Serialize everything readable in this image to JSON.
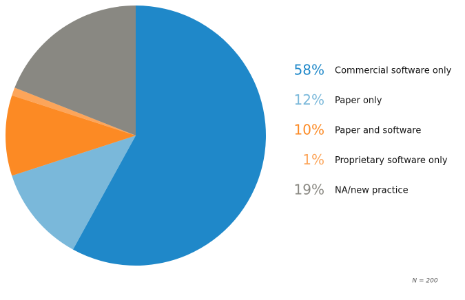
{
  "chart_data": {
    "type": "pie",
    "categories": [
      "Commercial software only",
      "Paper only",
      "Paper and software",
      "Proprietary software only",
      "NA/new practice"
    ],
    "values": [
      58,
      12,
      10,
      1,
      19
    ],
    "value_labels": [
      "58%",
      "12%",
      "10%",
      "1%",
      "19%"
    ],
    "colors": [
      "#1f88c9",
      "#7ab8da",
      "#fc8a24",
      "#fca55a",
      "#898882"
    ],
    "note": "N = 200"
  }
}
